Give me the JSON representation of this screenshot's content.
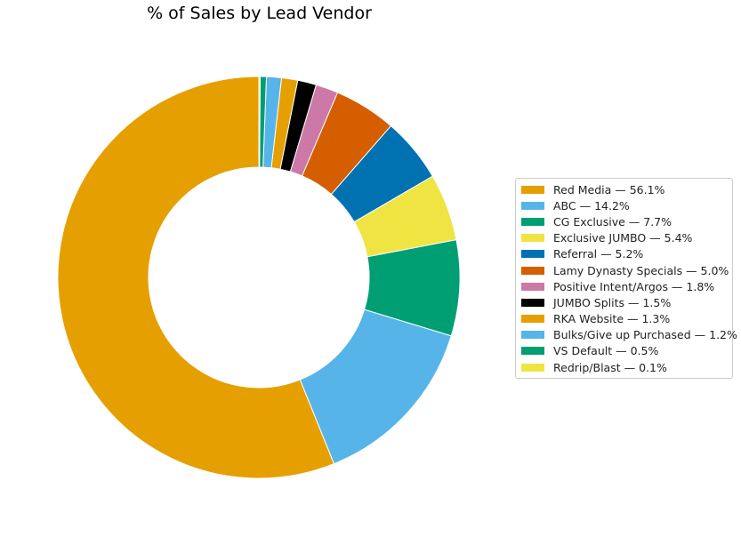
{
  "chart_data": {
    "type": "pie",
    "title": "% of Sales by Lead Vendor",
    "legend_position": "right",
    "slices": [
      {
        "label": "Red Media",
        "value": 56.1,
        "legend_text": "Red Media — 56.1%",
        "color": "#E69F00"
      },
      {
        "label": "ABC",
        "value": 14.2,
        "legend_text": "ABC — 14.2%",
        "color": "#56B4E9"
      },
      {
        "label": "CG Exclusive",
        "value": 7.7,
        "legend_text": "CG Exclusive — 7.7%",
        "color": "#009E73"
      },
      {
        "label": "Exclusive JUMBO",
        "value": 5.4,
        "legend_text": "Exclusive JUMBO — 5.4%",
        "color": "#F0E442"
      },
      {
        "label": "Referral",
        "value": 5.2,
        "legend_text": "Referral — 5.2%",
        "color": "#0072B2"
      },
      {
        "label": "Lamy Dynasty Specials",
        "value": 5.0,
        "legend_text": "Lamy Dynasty Specials — 5.0%",
        "color": "#D55E00"
      },
      {
        "label": "Positive Intent/Argos",
        "value": 1.8,
        "legend_text": "Positive Intent/Argos — 1.8%",
        "color": "#CC79A7"
      },
      {
        "label": "JUMBO Splits",
        "value": 1.5,
        "legend_text": "JUMBO Splits — 1.5%",
        "color": "#000000"
      },
      {
        "label": "RKA Website",
        "value": 1.3,
        "legend_text": "RKA Website — 1.3%",
        "color": "#E69F00"
      },
      {
        "label": "Bulks/Give up Purchased",
        "value": 1.2,
        "legend_text": "Bulks/Give up Purchased — 1.2%",
        "color": "#56B4E9"
      },
      {
        "label": "VS Default",
        "value": 0.5,
        "legend_text": "VS Default — 0.5%",
        "color": "#009E73"
      },
      {
        "label": "Redrip/Blast",
        "value": 0.1,
        "legend_text": "Redrip/Blast — 0.1%",
        "color": "#F0E442"
      }
    ]
  }
}
